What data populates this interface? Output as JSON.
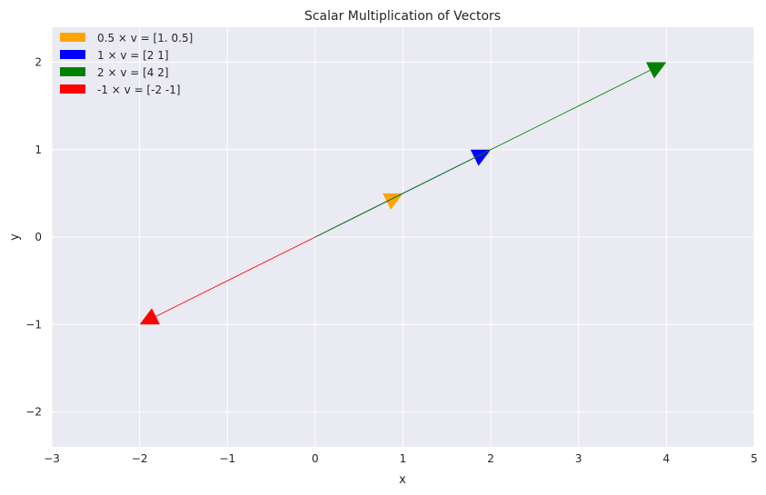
{
  "chart_data": {
    "type": "line",
    "title": "Scalar Multiplication of Vectors",
    "xlabel": "x",
    "ylabel": "y",
    "xlim": [
      -3,
      5
    ],
    "ylim": [
      -2.4,
      2.4
    ],
    "xticks": [
      -3,
      -2,
      -1,
      0,
      1,
      2,
      3,
      4,
      5
    ],
    "yticks": [
      -2,
      -1,
      0,
      1,
      2
    ],
    "xtick_labels": [
      "−3",
      "−2",
      "−1",
      "0",
      "1",
      "2",
      "3",
      "4",
      "5"
    ],
    "ytick_labels": [
      "−2",
      "−1",
      "0",
      "1",
      "2"
    ],
    "grid": true,
    "legend_position": "top-left",
    "background": "#EAEAF2",
    "series": [
      {
        "name": "0.5 × v = [1.  0.5]",
        "color": "#FFA500",
        "start": [
          0,
          0
        ],
        "end": [
          1,
          0.5
        ]
      },
      {
        "name": "1 × v = [2 1]",
        "color": "#0000FF",
        "start": [
          0,
          0
        ],
        "end": [
          2,
          1
        ]
      },
      {
        "name": "2 × v = [4 2]",
        "color": "#008000",
        "start": [
          0,
          0
        ],
        "end": [
          4,
          2
        ]
      },
      {
        "name": "-1 × v = [-2 -1]",
        "color": "#FF0000",
        "start": [
          0,
          0
        ],
        "end": [
          -2,
          -1
        ]
      }
    ]
  }
}
